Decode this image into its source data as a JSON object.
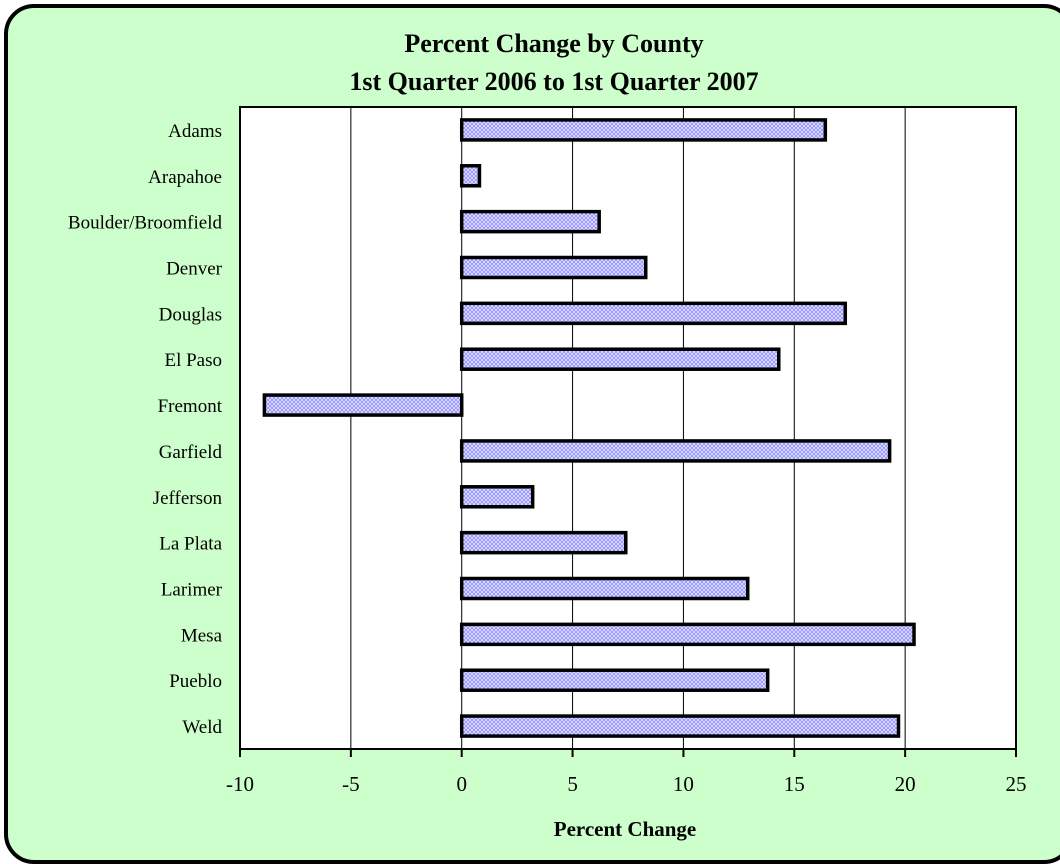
{
  "chart_data": {
    "type": "bar",
    "orientation": "horizontal",
    "title": "Percent Change by County",
    "subtitle": "1st Quarter 2006 to 1st Quarter 2007",
    "xlabel": "Percent Change",
    "ylabel": "",
    "xlim": [
      -10,
      25
    ],
    "xticks": [
      -10,
      -5,
      0,
      5,
      10,
      15,
      20,
      25
    ],
    "grid": "vertical",
    "categories": [
      "Adams",
      "Arapahoe",
      "Boulder/Broomfield",
      "Denver",
      "Douglas",
      "El Paso",
      "Fremont",
      "Garfield",
      "Jefferson",
      "La Plata",
      "Larimer",
      "Mesa",
      "Pueblo",
      "Weld"
    ],
    "values": [
      16.4,
      0.8,
      6.2,
      8.3,
      17.3,
      14.3,
      -8.9,
      19.3,
      3.2,
      7.4,
      12.9,
      20.4,
      13.8,
      19.7
    ],
    "colors": {
      "background": "#ccffcc",
      "plot_background": "#ffffff",
      "bar_fill": "#9999ff",
      "bar_outline": "#000000",
      "gridline": "#000000"
    }
  }
}
